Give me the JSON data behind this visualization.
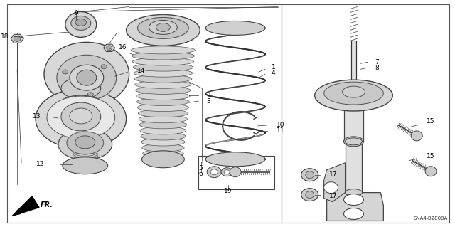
{
  "bg_color": "#ffffff",
  "diagram_code": "SNA4-B2800A",
  "fig_width": 6.4,
  "fig_height": 3.19,
  "dpi": 100,
  "gray_fill": "#e8e8e8",
  "dark_gray": "#c0c0c0",
  "line_color": "#333333",
  "label_fontsize": 6.5
}
